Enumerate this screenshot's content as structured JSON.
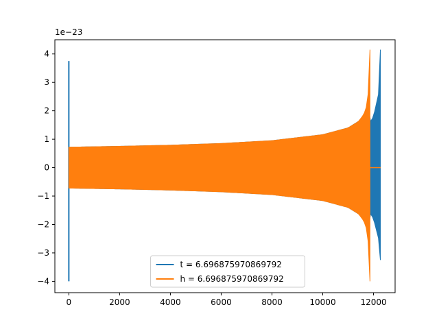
{
  "chart_data": {
    "type": "line",
    "title": "",
    "xlabel": "",
    "ylabel": "",
    "y_offset_label": "1e−23",
    "xlim": [
      -550,
      12850
    ],
    "ylim": [
      -4.4,
      4.5
    ],
    "xticks": [
      0,
      2000,
      4000,
      6000,
      8000,
      10000,
      12000
    ],
    "xtick_labels": [
      "0",
      "2000",
      "4000",
      "6000",
      "8000",
      "10000",
      "12000"
    ],
    "yticks": [
      -4,
      -3,
      -2,
      -1,
      0,
      1,
      2,
      3,
      4
    ],
    "ytick_labels": [
      "−4",
      "−3",
      "−2",
      "−1",
      "0",
      "1",
      "2",
      "3",
      "4"
    ],
    "grid": false,
    "legend_position": "lower center",
    "series": [
      {
        "name": "t = 6.696875970869792",
        "color": "#1f77b4",
        "spike_x": 0,
        "spike_range": [
          -4.0,
          3.75
        ],
        "envelope_x": [
          0,
          2000,
          4000,
          6000,
          8000,
          10000,
          11000,
          11500,
          11800,
          11870,
          12000,
          12200,
          12270
        ],
        "envelope_upper": [
          0.72,
          0.75,
          0.79,
          0.85,
          0.95,
          1.16,
          1.4,
          1.68,
          2.15,
          1.6,
          1.8,
          2.6,
          4.15
        ],
        "envelope_lower": [
          -0.72,
          -0.75,
          -0.79,
          -0.85,
          -0.95,
          -1.16,
          -1.4,
          -1.68,
          -2.15,
          -1.6,
          -1.8,
          -2.5,
          -3.25
        ],
        "end_x": 12270
      },
      {
        "name": "h = 6.696875970869792",
        "color": "#ff7f0e",
        "envelope_x": [
          0,
          2000,
          4000,
          6000,
          8000,
          10000,
          11000,
          11400,
          11600,
          11700,
          11780,
          11830,
          11860
        ],
        "envelope_upper": [
          0.72,
          0.75,
          0.79,
          0.85,
          0.95,
          1.16,
          1.4,
          1.62,
          1.85,
          2.05,
          2.5,
          3.2,
          4.15
        ],
        "envelope_lower": [
          -0.72,
          -0.75,
          -0.79,
          -0.85,
          -0.95,
          -1.16,
          -1.4,
          -1.62,
          -1.85,
          -2.05,
          -2.5,
          -3.2,
          -4.0
        ],
        "flat_after": [
          11860,
          12280
        ],
        "flat_value": 0
      }
    ]
  }
}
